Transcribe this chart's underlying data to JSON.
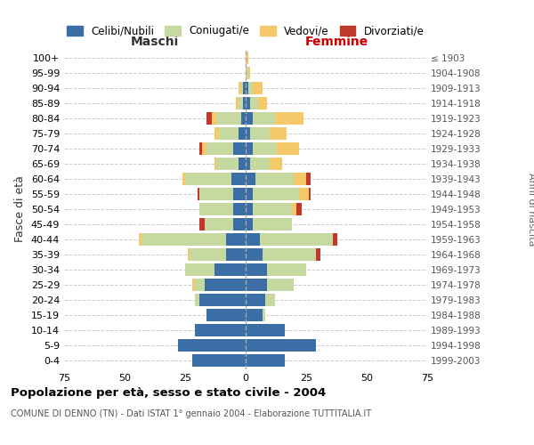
{
  "age_groups": [
    "0-4",
    "5-9",
    "10-14",
    "15-19",
    "20-24",
    "25-29",
    "30-34",
    "35-39",
    "40-44",
    "45-49",
    "50-54",
    "55-59",
    "60-64",
    "65-69",
    "70-74",
    "75-79",
    "80-84",
    "85-89",
    "90-94",
    "95-99",
    "100+"
  ],
  "birth_years": [
    "1999-2003",
    "1994-1998",
    "1989-1993",
    "1984-1988",
    "1979-1983",
    "1974-1978",
    "1969-1973",
    "1964-1968",
    "1959-1963",
    "1954-1958",
    "1949-1953",
    "1944-1948",
    "1939-1943",
    "1934-1938",
    "1929-1933",
    "1924-1928",
    "1919-1923",
    "1914-1918",
    "1909-1913",
    "1904-1908",
    "≤ 1903"
  ],
  "male_celibi": [
    22,
    28,
    21,
    16,
    19,
    17,
    13,
    8,
    8,
    5,
    5,
    5,
    6,
    3,
    5,
    3,
    2,
    1,
    1,
    0,
    0
  ],
  "male_coniugati": [
    0,
    0,
    0,
    0,
    2,
    4,
    12,
    15,
    35,
    12,
    14,
    14,
    19,
    9,
    11,
    8,
    10,
    2,
    1,
    0,
    0
  ],
  "male_vedovi": [
    0,
    0,
    0,
    0,
    0,
    1,
    0,
    1,
    1,
    0,
    0,
    0,
    1,
    1,
    2,
    2,
    2,
    1,
    1,
    0,
    0
  ],
  "male_divorziati": [
    0,
    0,
    0,
    0,
    0,
    0,
    0,
    0,
    0,
    2,
    0,
    1,
    0,
    0,
    1,
    0,
    2,
    0,
    0,
    0,
    0
  ],
  "female_celibi": [
    16,
    29,
    16,
    7,
    8,
    9,
    9,
    7,
    6,
    3,
    3,
    3,
    4,
    2,
    3,
    2,
    3,
    2,
    1,
    0,
    0
  ],
  "female_coniugati": [
    0,
    0,
    0,
    1,
    4,
    11,
    16,
    22,
    30,
    16,
    16,
    19,
    16,
    8,
    10,
    8,
    9,
    3,
    2,
    1,
    0
  ],
  "female_vedovi": [
    0,
    0,
    0,
    0,
    0,
    0,
    0,
    0,
    0,
    0,
    2,
    4,
    5,
    5,
    9,
    7,
    12,
    4,
    4,
    1,
    1
  ],
  "female_divorziati": [
    0,
    0,
    0,
    0,
    0,
    0,
    0,
    2,
    2,
    0,
    2,
    1,
    2,
    0,
    0,
    0,
    0,
    0,
    0,
    0,
    0
  ],
  "colors": {
    "celibi": "#3a6ea5",
    "coniugati": "#c5d9a0",
    "vedovi": "#f5c96a",
    "divorziati": "#c0392b"
  },
  "title_main": "Popolazione per età, sesso e stato civile - 2004",
  "title_sub": "COMUNE DI DENNO (TN) - Dati ISTAT 1° gennaio 2004 - Elaborazione TUTTITALIA.IT",
  "label_maschi": "Maschi",
  "label_femmine": "Femmine",
  "ylabel_left": "Fasce di età",
  "ylabel_right": "Anni di nascita",
  "xlim": 75,
  "legend_labels": [
    "Celibi/Nubili",
    "Coniugati/e",
    "Vedovi/e",
    "Divorziati/e"
  ],
  "background_color": "#ffffff",
  "grid_color": "#cccccc",
  "femmine_color": "#cc0000"
}
